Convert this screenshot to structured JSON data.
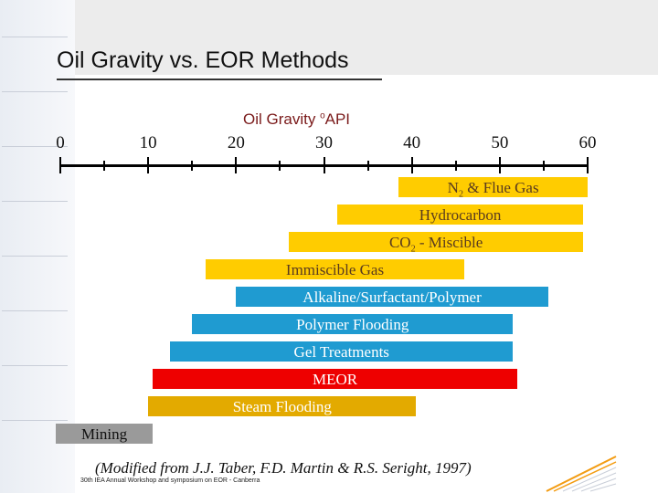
{
  "slide": {
    "title": "Oil Gravity vs. EOR Methods",
    "source": "(Modified from J.J. Taber, F.D. Martin & R.S. Seright, 1997)",
    "footer": "30th IEA Annual Workshop and symposium on EOR - Canberra"
  },
  "chart_data": {
    "type": "bar",
    "orientation": "horizontal-range",
    "axis": {
      "label": "Oil Gravity ",
      "label_sup": "o",
      "label_unit": "API",
      "range": [
        0,
        60
      ],
      "ticks": [
        "0",
        "10",
        "20",
        "30",
        "40",
        "50",
        "60"
      ]
    },
    "series": [
      {
        "label_main": "N",
        "label_sub": "2",
        "label_rest": " & Flue Gas",
        "start": 38.5,
        "end": 60,
        "color": "#ffcc00",
        "label_color": "#5a3b1f"
      },
      {
        "label_main": "Hydrocarbon",
        "label_sub": "",
        "label_rest": "",
        "start": 31.5,
        "end": 59.5,
        "color": "#ffcc00",
        "label_color": "#5a3b1f"
      },
      {
        "label_main": "CO",
        "label_sub": "2",
        "label_rest": " - Miscible",
        "start": 26,
        "end": 59.5,
        "color": "#ffcc00",
        "label_color": "#5a3b1f"
      },
      {
        "label_main": "Immiscible Gas",
        "label_sub": "",
        "label_rest": "",
        "start": 16.5,
        "end": 46,
        "color": "#ffcc00",
        "label_color": "#5a3b1f"
      },
      {
        "label_main": "Alkaline/Surfactant/Polymer",
        "label_sub": "",
        "label_rest": "",
        "start": 20,
        "end": 55.5,
        "color": "#1f9bd1",
        "label_color": "#ffffff"
      },
      {
        "label_main": "Polymer Flooding",
        "label_sub": "",
        "label_rest": "",
        "start": 15,
        "end": 51.5,
        "color": "#1f9bd1",
        "label_color": "#ffffff"
      },
      {
        "label_main": "Gel Treatments",
        "label_sub": "",
        "label_rest": "",
        "start": 12.5,
        "end": 51.5,
        "color": "#1f9bd1",
        "label_color": "#ffffff"
      },
      {
        "label_main": "MEOR",
        "label_sub": "",
        "label_rest": "",
        "start": 10.5,
        "end": 52,
        "color": "#ee0000",
        "label_color": "#ffffff"
      },
      {
        "label_main": "Steam Flooding",
        "label_sub": "",
        "label_rest": "",
        "start": 10,
        "end": 40.5,
        "color": "#e3aa00",
        "label_color": "#ffffff"
      },
      {
        "label_main": "Mining",
        "label_sub": "",
        "label_rest": "",
        "start": -0.5,
        "end": 10.5,
        "color": "#9a9a9a",
        "label_color": "#111111"
      }
    ]
  }
}
